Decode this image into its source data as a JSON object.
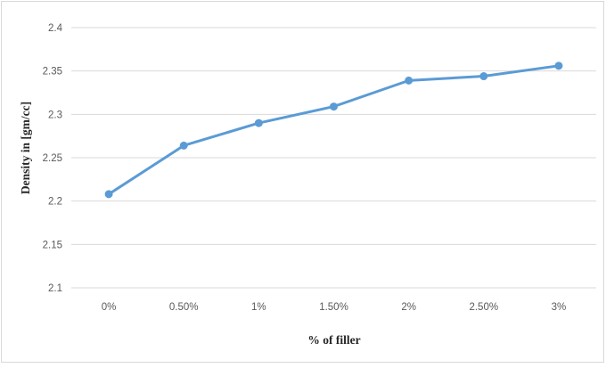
{
  "chart_data": {
    "type": "line",
    "title": "",
    "xlabel": "% of filler",
    "ylabel": "Density in [gm/cc]",
    "categories": [
      "0%",
      "0.50%",
      "1%",
      "1.50%",
      "2%",
      "2.50%",
      "3%"
    ],
    "series": [
      {
        "values": [
          2.208,
          2.264,
          2.29,
          2.309,
          2.339,
          2.344,
          2.356
        ]
      }
    ],
    "ylim": [
      2.1,
      2.4
    ],
    "yticks": [
      "2.1",
      "2.15",
      "2.2",
      "2.25",
      "2.3",
      "2.35",
      "2.4"
    ],
    "grid": true,
    "legend": "none",
    "colors": {
      "line": "#5b9bd5",
      "grid": "#d9d9d9",
      "tick_text": "#595959"
    }
  }
}
